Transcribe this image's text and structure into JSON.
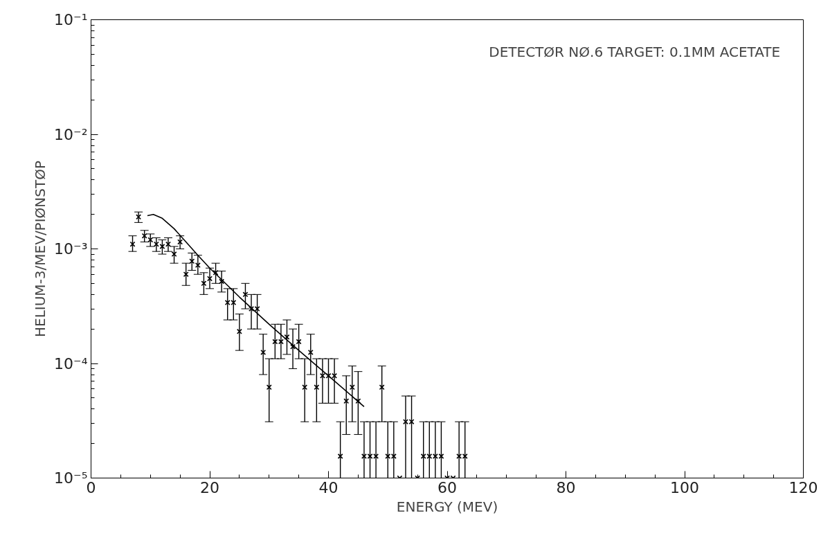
{
  "chart_data": {
    "type": "scatter",
    "xlabel": "ENERGY (MEV)",
    "ylabel": "HELIUM-3/MEV/PIØNSTØP",
    "annotations": [
      "DETECTØR NØ.6   TARGET: 0.1MM ACETATE"
    ],
    "log": "y",
    "xlim": [
      0,
      120
    ],
    "xticks": [
      0,
      20,
      40,
      60,
      80,
      100,
      120
    ],
    "ylim": [
      1e-05,
      0.1
    ],
    "yticks": [
      {
        "value": 1e-05,
        "label": "10⁻⁵"
      },
      {
        "value": 0.0001,
        "label": "10⁻⁴"
      },
      {
        "value": 0.001,
        "label": "10⁻³"
      },
      {
        "value": 0.01,
        "label": "10⁻²"
      },
      {
        "value": 0.1,
        "label": "10⁻¹"
      }
    ],
    "grid": false,
    "marker": "cross",
    "series": [
      {
        "color": "#000000",
        "x": [
          7,
          8,
          9,
          10,
          11,
          12,
          13,
          14,
          15,
          16,
          17,
          18,
          19,
          20,
          21,
          22,
          23,
          24,
          25,
          26,
          27,
          28,
          29,
          30,
          31,
          32,
          33,
          34,
          35,
          36,
          37,
          38,
          39,
          40,
          41,
          42,
          43,
          44,
          45,
          46,
          47,
          48,
          49,
          50,
          51,
          52,
          53,
          54,
          55,
          56,
          57,
          58,
          59,
          60,
          61,
          62,
          63
        ],
        "values": [
          0.0011,
          0.0019,
          0.0013,
          0.0012,
          0.0011,
          0.00105,
          0.0011,
          0.0009,
          0.00115,
          0.0006,
          0.00078,
          0.00072,
          0.0005,
          0.00055,
          0.00062,
          0.00052,
          0.00034,
          0.00034,
          0.00019,
          0.0004,
          0.0003,
          0.0003,
          0.000125,
          6.2e-05,
          0.000155,
          0.000155,
          0.00017,
          0.00014,
          0.000155,
          6.2e-05,
          0.000125,
          6.2e-05,
          7.8e-05,
          7.8e-05,
          7.8e-05,
          1.55e-05,
          4.7e-05,
          6.2e-05,
          4.7e-05,
          1.55e-05,
          1.55e-05,
          1.55e-05,
          6.2e-05,
          1.55e-05,
          1.55e-05,
          1e-05,
          3.1e-05,
          3.1e-05,
          1e-05,
          1.55e-05,
          1.55e-05,
          1.55e-05,
          1.55e-05,
          1e-05,
          1e-05,
          1.55e-05,
          1.55e-05
        ],
        "errors": [
          [
            0.00095,
            0.0013
          ],
          [
            0.0017,
            0.0021
          ],
          [
            0.00115,
            0.00145
          ],
          [
            0.00105,
            0.00135
          ],
          [
            0.00095,
            0.00125
          ],
          [
            0.0009,
            0.0012
          ],
          [
            0.00095,
            0.00125
          ],
          [
            0.00075,
            0.00105
          ],
          [
            0.001,
            0.0013
          ],
          [
            0.00048,
            0.00075
          ],
          [
            0.00065,
            0.00092
          ],
          [
            0.0006,
            0.00088
          ],
          [
            0.0004,
            0.00062
          ],
          [
            0.00045,
            0.00068
          ],
          [
            0.0005,
            0.00075
          ],
          [
            0.00042,
            0.00064
          ],
          [
            0.00024,
            0.00045
          ],
          [
            0.00024,
            0.00045
          ],
          [
            0.00013,
            0.00027
          ],
          [
            0.0003,
            0.0005
          ],
          [
            0.0002,
            0.0004
          ],
          [
            0.0002,
            0.0004
          ],
          [
            8e-05,
            0.00018
          ],
          [
            3.1e-05,
            0.00011
          ],
          [
            0.00011,
            0.00022
          ],
          [
            0.00011,
            0.00022
          ],
          [
            0.00012,
            0.00024
          ],
          [
            9e-05,
            0.0002
          ],
          [
            0.00011,
            0.00022
          ],
          [
            3.1e-05,
            0.00011
          ],
          [
            8e-05,
            0.00018
          ],
          [
            3.1e-05,
            0.00011
          ],
          [
            4.5e-05,
            0.00011
          ],
          [
            4.5e-05,
            0.00011
          ],
          [
            4.5e-05,
            0.00011
          ],
          [
            1e-05,
            3.1e-05
          ],
          [
            2.4e-05,
            7.8e-05
          ],
          [
            3.1e-05,
            9.5e-05
          ],
          [
            2.4e-05,
            8.5e-05
          ],
          [
            1e-05,
            3.1e-05
          ],
          [
            1e-05,
            3.1e-05
          ],
          [
            1e-05,
            3.1e-05
          ],
          [
            3.1e-05,
            9.5e-05
          ],
          [
            1e-05,
            3.1e-05
          ],
          [
            1e-05,
            3.1e-05
          ],
          null,
          [
            1e-05,
            5.2e-05
          ],
          [
            1e-05,
            5.2e-05
          ],
          null,
          [
            1e-05,
            3.1e-05
          ],
          [
            1e-05,
            3.1e-05
          ],
          [
            1e-05,
            3.1e-05
          ],
          [
            1e-05,
            3.1e-05
          ],
          null,
          null,
          [
            1e-05,
            3.1e-05
          ],
          [
            1e-05,
            3.1e-05
          ]
        ]
      },
      {
        "type": "line",
        "marker": "none",
        "color": "#000000",
        "x": [
          9.5,
          10.5,
          12,
          14,
          16,
          18,
          20,
          25,
          30,
          35,
          40,
          46
        ],
        "values": [
          0.00195,
          0.002,
          0.00185,
          0.0015,
          0.00115,
          0.00088,
          0.00068,
          0.00038,
          0.00022,
          0.00013,
          7.8e-05,
          4.2e-05
        ]
      }
    ]
  }
}
